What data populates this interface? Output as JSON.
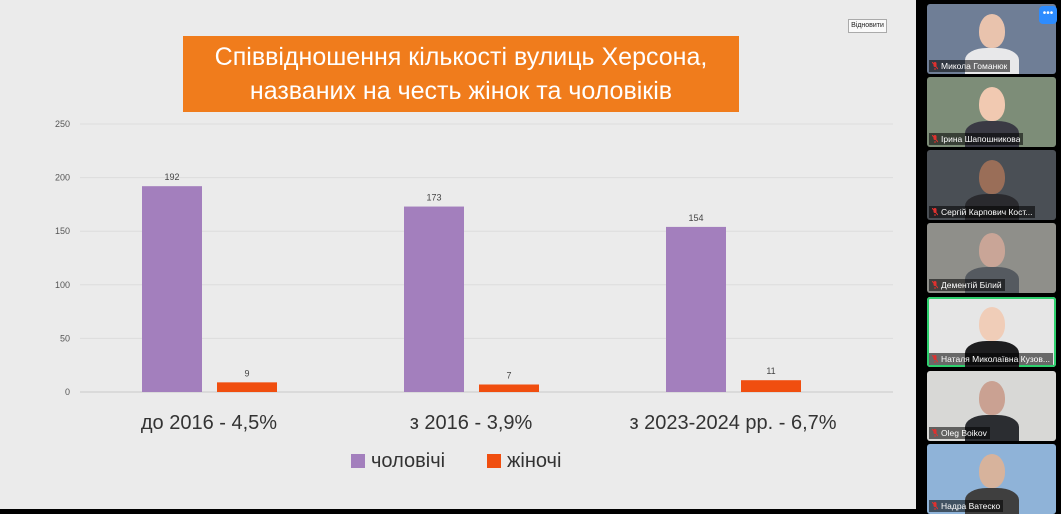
{
  "slide": {
    "restore_label": "Відновити",
    "title_line1": "Співвідношення кількості вулиць Херсона,",
    "title_line2": "названих на честь жінок та чоловіків"
  },
  "chart_data": {
    "type": "bar",
    "categories": [
      "до 2016 - 4,5%",
      "з 2016 - 3,9%",
      "з 2023-2024 рр. -  6,7%"
    ],
    "series": [
      {
        "name": "чоловічі",
        "values": [
          192,
          173,
          154
        ],
        "color": "#a37fbd"
      },
      {
        "name": "жіночі",
        "values": [
          9,
          7,
          11
        ],
        "color": "#f04e0f"
      }
    ],
    "title": "Співвідношення кількості вулиць Херсона, названих на честь жінок та чоловіків",
    "ylim": [
      0,
      250
    ],
    "yticks": [
      0,
      50,
      100,
      150,
      200,
      250
    ],
    "grid": true,
    "legend": "bottom"
  },
  "participants": [
    {
      "name": "Микола Гоманюк",
      "bg": "#6f7e96",
      "skin": "#e9c3ad",
      "shirt": "#e8e8ea"
    },
    {
      "name": "Ірина Шапошникова",
      "bg": "#7d8d78",
      "skin": "#f1c9b1",
      "shirt": "#3a3a44"
    },
    {
      "name": "Сергій Карпович Кост...",
      "bg": "#4a4f55",
      "skin": "#9a6e58",
      "shirt": "#2a2a2e"
    },
    {
      "name": "Дементій Білий",
      "bg": "#8f8f8a",
      "skin": "#c9a597",
      "shirt": "#555a60"
    },
    {
      "name": "Наталя Миколаївна Кузов...",
      "bg": "#e6e6e6",
      "skin": "#f0cdb8",
      "shirt": "#1d1d1f"
    },
    {
      "name": "Oleg Boikov",
      "bg": "#d8d8d6",
      "skin": "#caa192",
      "shirt": "#2b2d31"
    },
    {
      "name": "Надра Ватеско",
      "bg": "#8fb3d8",
      "skin": "#d7b39c",
      "shirt": "#3f3f3f"
    }
  ],
  "more_label": "•••"
}
